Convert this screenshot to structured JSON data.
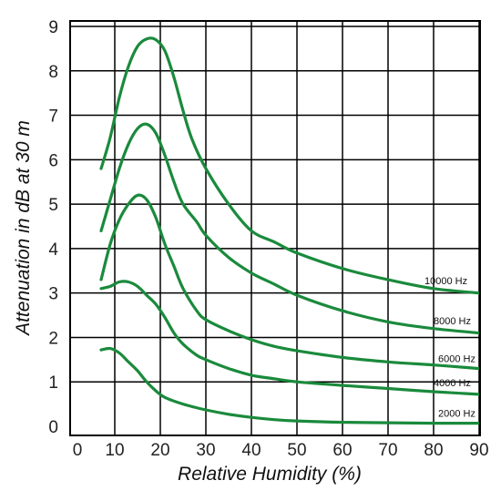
{
  "chart_data": {
    "type": "line",
    "xlabel": "Relative Humidity (%)",
    "ylabel": "Attenuation in dB at 30 m",
    "xlim": [
      0,
      90
    ],
    "ylim": [
      0,
      9
    ],
    "x_ticks": [
      "0",
      "10",
      "20",
      "30",
      "40",
      "50",
      "60",
      "70",
      "80",
      "90"
    ],
    "y_ticks": [
      "0",
      "1",
      "2",
      "3",
      "4",
      "5",
      "6",
      "7",
      "8",
      "9"
    ],
    "grid": true,
    "line_color": "#1a8a3c",
    "series": [
      {
        "name": "10000 Hz",
        "points": [
          [
            7,
            5.8
          ],
          [
            9,
            6.5
          ],
          [
            11,
            7.4
          ],
          [
            13,
            8.1
          ],
          [
            15,
            8.55
          ],
          [
            17,
            8.72
          ],
          [
            19,
            8.7
          ],
          [
            21,
            8.45
          ],
          [
            23,
            7.85
          ],
          [
            25,
            7.1
          ],
          [
            27,
            6.45
          ],
          [
            30,
            5.8
          ],
          [
            35,
            5.0
          ],
          [
            40,
            4.4
          ],
          [
            45,
            4.15
          ],
          [
            50,
            3.9
          ],
          [
            60,
            3.55
          ],
          [
            70,
            3.3
          ],
          [
            80,
            3.1
          ],
          [
            90,
            3.0
          ]
        ]
      },
      {
        "name": "8000 Hz",
        "points": [
          [
            7,
            4.4
          ],
          [
            9,
            5.1
          ],
          [
            11,
            5.8
          ],
          [
            13,
            6.35
          ],
          [
            15,
            6.7
          ],
          [
            17,
            6.8
          ],
          [
            19,
            6.6
          ],
          [
            21,
            6.1
          ],
          [
            23,
            5.5
          ],
          [
            25,
            5.0
          ],
          [
            28,
            4.6
          ],
          [
            30,
            4.3
          ],
          [
            35,
            3.8
          ],
          [
            40,
            3.45
          ],
          [
            45,
            3.2
          ],
          [
            50,
            2.95
          ],
          [
            60,
            2.6
          ],
          [
            70,
            2.35
          ],
          [
            80,
            2.2
          ],
          [
            90,
            2.1
          ]
        ]
      },
      {
        "name": "6000 Hz",
        "points": [
          [
            7,
            3.3
          ],
          [
            9,
            4.1
          ],
          [
            11,
            4.65
          ],
          [
            13,
            5.0
          ],
          [
            15,
            5.2
          ],
          [
            17,
            5.1
          ],
          [
            19,
            4.7
          ],
          [
            21,
            4.1
          ],
          [
            23,
            3.6
          ],
          [
            25,
            3.1
          ],
          [
            28,
            2.6
          ],
          [
            30,
            2.4
          ],
          [
            35,
            2.15
          ],
          [
            40,
            1.95
          ],
          [
            45,
            1.8
          ],
          [
            50,
            1.7
          ],
          [
            60,
            1.55
          ],
          [
            70,
            1.45
          ],
          [
            80,
            1.38
          ],
          [
            90,
            1.3
          ]
        ]
      },
      {
        "name": "4000 Hz",
        "points": [
          [
            7,
            3.1
          ],
          [
            9,
            3.15
          ],
          [
            11,
            3.25
          ],
          [
            13,
            3.25
          ],
          [
            15,
            3.15
          ],
          [
            17,
            2.95
          ],
          [
            19,
            2.75
          ],
          [
            21,
            2.45
          ],
          [
            23,
            2.1
          ],
          [
            25,
            1.85
          ],
          [
            28,
            1.6
          ],
          [
            30,
            1.5
          ],
          [
            35,
            1.3
          ],
          [
            40,
            1.15
          ],
          [
            45,
            1.07
          ],
          [
            50,
            1.0
          ],
          [
            60,
            0.92
          ],
          [
            70,
            0.85
          ],
          [
            80,
            0.78
          ],
          [
            90,
            0.72
          ]
        ]
      },
      {
        "name": "2000 Hz",
        "points": [
          [
            7,
            1.72
          ],
          [
            9,
            1.75
          ],
          [
            11,
            1.65
          ],
          [
            13,
            1.45
          ],
          [
            15,
            1.25
          ],
          [
            17,
            1.0
          ],
          [
            19,
            0.8
          ],
          [
            21,
            0.65
          ],
          [
            25,
            0.5
          ],
          [
            30,
            0.37
          ],
          [
            35,
            0.27
          ],
          [
            40,
            0.2
          ],
          [
            45,
            0.15
          ],
          [
            50,
            0.12
          ],
          [
            60,
            0.09
          ],
          [
            70,
            0.08
          ],
          [
            80,
            0.07
          ],
          [
            90,
            0.07
          ]
        ]
      }
    ],
    "series_label_positions": [
      {
        "name": "10000 Hz",
        "x": 78,
        "y": 3.2
      },
      {
        "name": "8000 Hz",
        "x": 80,
        "y": 2.3
      },
      {
        "name": "6000 Hz",
        "x": 81,
        "y": 1.45
      },
      {
        "name": "4000 Hz",
        "x": 80,
        "y": 0.9
      },
      {
        "name": "2000 Hz",
        "x": 81,
        "y": 0.22
      }
    ]
  }
}
